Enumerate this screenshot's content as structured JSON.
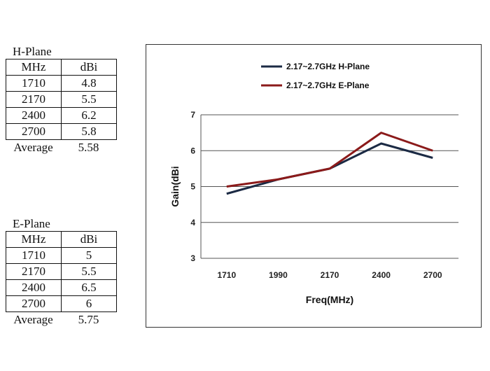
{
  "tables": [
    {
      "title": "H-Plane",
      "headers": [
        "MHz",
        "dBi"
      ],
      "rows": [
        [
          "1710",
          "4.8"
        ],
        [
          "2170",
          "5.5"
        ],
        [
          "2400",
          "6.2"
        ],
        [
          "2700",
          "5.8"
        ]
      ],
      "average_label": "Average",
      "average_value": "5.58"
    },
    {
      "title": "E-Plane",
      "headers": [
        "MHz",
        "dBi"
      ],
      "rows": [
        [
          "1710",
          "5"
        ],
        [
          "2170",
          "5.5"
        ],
        [
          "2400",
          "6.5"
        ],
        [
          "2700",
          "6"
        ]
      ],
      "average_label": "Average",
      "average_value": "5.75"
    }
  ],
  "chart_data": {
    "type": "line",
    "categories": [
      "1710",
      "1990",
      "2170",
      "2400",
      "2700"
    ],
    "series": [
      {
        "name": "2.17~2.7GHz H-Plane",
        "color": "#1b2a44",
        "values": [
          4.8,
          5.2,
          5.5,
          6.2,
          5.8
        ]
      },
      {
        "name": "2.17~2.7GHz E-Plane",
        "color": "#8b1a1a",
        "values": [
          5.0,
          5.2,
          5.5,
          6.5,
          6.0
        ]
      }
    ],
    "title": "",
    "xlabel": "Freq(MHz)",
    "ylabel": "Gain(dBi",
    "ylim": [
      3,
      7
    ],
    "yticks": [
      "3",
      "4",
      "5",
      "6",
      "7"
    ],
    "grid": true,
    "legend_position": "top"
  }
}
